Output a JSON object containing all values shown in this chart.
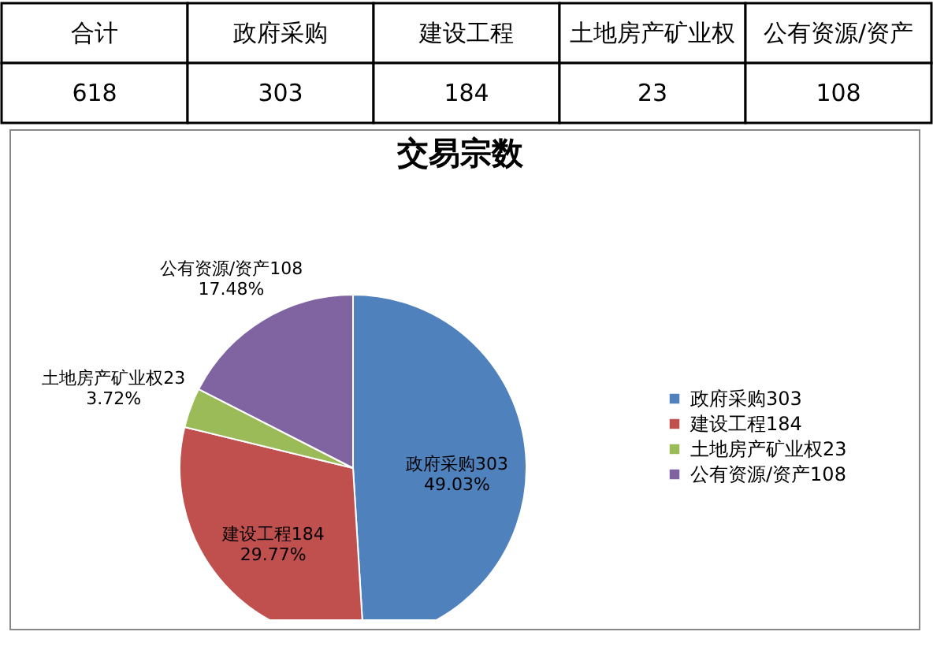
{
  "chart_data": [
    {
      "type": "other",
      "categories": [
        "合计",
        "政府采购",
        "建设工程",
        "土地房产矿业权",
        "公有资源/资产"
      ],
      "values": [
        618,
        303,
        184,
        23,
        108
      ],
      "data_labels": true
    },
    {
      "type": "pie",
      "title": "交易宗数",
      "categories": [
        "政府采购303",
        "建设工程184",
        "土地房产矿业权23",
        "公有资源/资产108"
      ],
      "values": [
        49.03,
        29.77,
        3.72,
        17.48
      ],
      "colors": [
        "#4f81bd",
        "#c0504d",
        "#9bbb59",
        "#8064a2"
      ],
      "value_labels": [
        "49.03%",
        "29.77%",
        "3.72%",
        "17.48%"
      ],
      "legend": "right"
    }
  ]
}
